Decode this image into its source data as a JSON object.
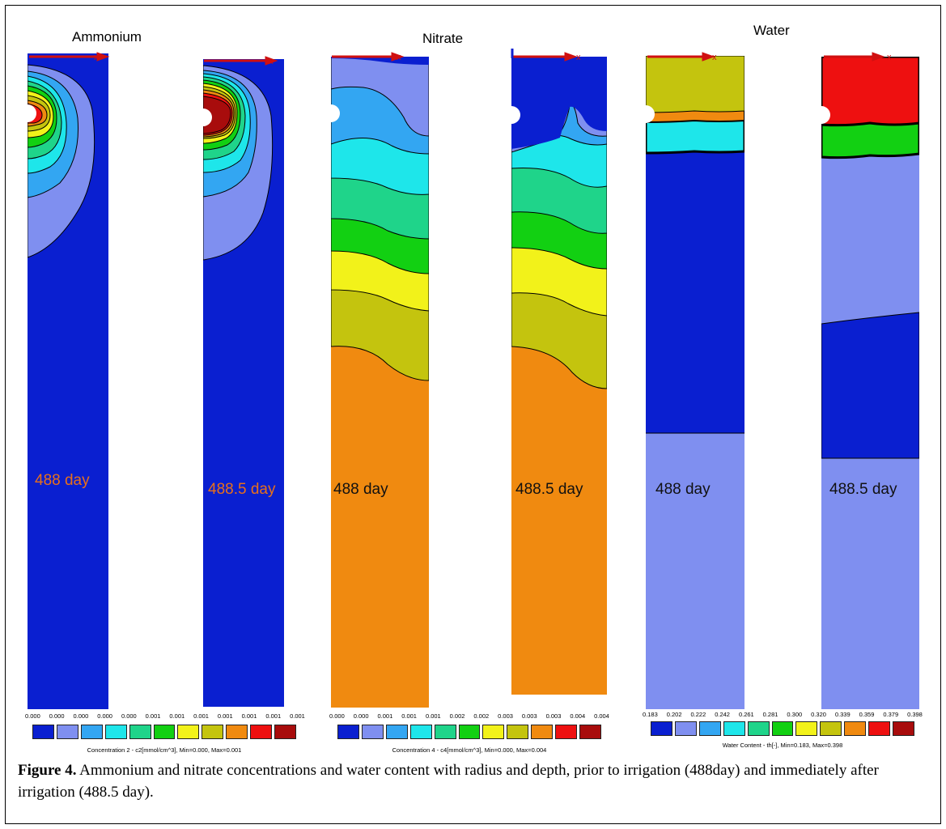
{
  "headers": {
    "ammonium": "Ammonium",
    "nitrate": "Nitrate",
    "water": "Water"
  },
  "panels": [
    {
      "day_label": "488 day",
      "label_color": "#e8701a",
      "variable": "ammonium"
    },
    {
      "day_label": "488.5 day",
      "label_color": "#e8701a",
      "variable": "ammonium"
    },
    {
      "day_label": "488 day",
      "label_color": "#111111",
      "variable": "nitrate"
    },
    {
      "day_label": "488.5 day",
      "label_color": "#111111",
      "variable": "nitrate"
    },
    {
      "day_label": "488 day",
      "label_color": "#111111",
      "variable": "water"
    },
    {
      "day_label": "488.5 day",
      "label_color": "#111111",
      "variable": "water"
    }
  ],
  "legends": {
    "ammonium": {
      "ticks": [
        "0.000",
        "0.000",
        "0.000",
        "0.000",
        "0.000",
        "0.001",
        "0.001",
        "0.001",
        "0.001",
        "0.001",
        "0.001",
        "0.001"
      ],
      "caption": "Concentration 2 - c2[mmol/cm^3], Min=0.000, Max=0.001"
    },
    "nitrate": {
      "ticks": [
        "0.000",
        "0.000",
        "0.001",
        "0.001",
        "0.001",
        "0.002",
        "0.002",
        "0.003",
        "0.003",
        "0.003",
        "0.004",
        "0.004"
      ],
      "caption": "Concentration 4 - c4[mmol/cm^3], Min=0.000, Max=0.004"
    },
    "water": {
      "ticks": [
        "0.183",
        "0.202",
        "0.222",
        "0.242",
        "0.261",
        "0.281",
        "0.300",
        "0.320",
        "0.339",
        "0.359",
        "0.379",
        "0.398"
      ],
      "caption": "Water Content - th[-], Min=0.183, Max=0.398"
    }
  },
  "colors": {
    "scale": [
      "#0a1fd0",
      "#7f8ff0",
      "#33a6f2",
      "#1ee6ea",
      "#1fd48a",
      "#12d012",
      "#f2f21a",
      "#c4c40e",
      "#f08a10",
      "#ee1010",
      "#a80c0c"
    ],
    "axis_arrow": "#d01010"
  },
  "figure": {
    "label": "Figure 4.",
    "text": " Ammonium and nitrate concentrations and water content with radius and depth, prior to irrigation (488day) and immediately after irrigation (488.5 day)."
  }
}
